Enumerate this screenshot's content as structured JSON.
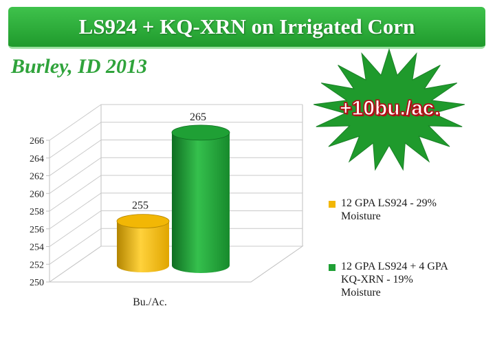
{
  "header": {
    "title": "LS924 + KQ-XRN on Irrigated Corn"
  },
  "subtitle": "Burley, ID 2013",
  "callout": {
    "text": "+10bu./ac.",
    "color": "#c8101c"
  },
  "colors": {
    "banner": "#2fa33b",
    "series1": "#f2b705",
    "series2": "#1fa035"
  },
  "chart_data": {
    "type": "bar",
    "categories": [
      "Bu./Ac."
    ],
    "series": [
      {
        "name": "12 GPA LS924 - 29% Moisture",
        "values": [
          255
        ],
        "color": "#f2b705"
      },
      {
        "name": "12 GPA LS924 + 4 GPA KQ-XRN - 19% Moisture",
        "values": [
          265
        ],
        "color": "#1fa035"
      }
    ],
    "data_labels": [
      "255",
      "265"
    ],
    "ylim": [
      250,
      266
    ],
    "yticks": [
      250,
      252,
      254,
      256,
      258,
      260,
      262,
      264,
      266
    ],
    "ytick_labels": [
      "250",
      "252",
      "254",
      "256",
      "258",
      "260",
      "262",
      "264",
      "266"
    ],
    "xlabel": "",
    "ylabel": "",
    "grid": true,
    "legend": "right",
    "style": "3d-cylinder"
  }
}
